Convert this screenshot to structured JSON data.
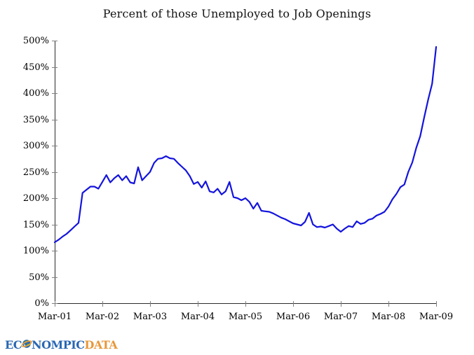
{
  "title": "Percent of those Unemployed to Job Openings",
  "logo": {
    "part1": "EC",
    "part2": "NOMPIC",
    "part3": "DATA",
    "globe_icon": "globe-icon"
  },
  "colors": {
    "line": "#1414dd",
    "axis": "#2b2b2b",
    "tick": "#808080",
    "logo_blue": "#2a67b2",
    "logo_orange": "#e8973a",
    "logo_globe_green": "#55a544",
    "logo_globe_blue": "#2a67b2",
    "logo_globe_ring": "#f0a030"
  },
  "chart_data": {
    "type": "line",
    "title": "Percent of those Unemployed to Job Openings",
    "xlabel": "",
    "ylabel": "",
    "grid": false,
    "legend_position": "none",
    "x_start": "Mar-2001",
    "x_frequency": "monthly",
    "x_tick_labels": [
      "Mar-01",
      "Mar-02",
      "Mar-03",
      "Mar-04",
      "Mar-05",
      "Mar-06",
      "Mar-07",
      "Mar-08",
      "Mar-09"
    ],
    "x_tick_month_positions": [
      0,
      12,
      24,
      36,
      48,
      60,
      72,
      84,
      96
    ],
    "y_tick_labels": [
      "0%",
      "50%",
      "100%",
      "150%",
      "200%",
      "250%",
      "300%",
      "350%",
      "400%",
      "450%",
      "500%"
    ],
    "y_tick_values": [
      0,
      50,
      100,
      150,
      200,
      250,
      300,
      350,
      400,
      450,
      500
    ],
    "ylim": [
      0,
      500
    ],
    "series": [
      {
        "name": "Percent of those Unemployed to Job Openings",
        "unit": "percent",
        "values": [
          116,
          121,
          127,
          132,
          139,
          146,
          153,
          210,
          216,
          222,
          222,
          218,
          231,
          244,
          230,
          238,
          244,
          234,
          242,
          230,
          228,
          259,
          234,
          242,
          250,
          267,
          275,
          276,
          280,
          276,
          275,
          267,
          260,
          253,
          242,
          227,
          231,
          220,
          232,
          213,
          211,
          218,
          207,
          213,
          231,
          202,
          200,
          196,
          200,
          193,
          180,
          191,
          176,
          175,
          174,
          171,
          167,
          163,
          160,
          156,
          152,
          150,
          148,
          155,
          172,
          150,
          145,
          146,
          144,
          147,
          150,
          142,
          136,
          142,
          147,
          145,
          156,
          151,
          153,
          159,
          161,
          167,
          170,
          174,
          184,
          198,
          208,
          221,
          226,
          250,
          268,
          296,
          318,
          354,
          388,
          418,
          488
        ]
      }
    ]
  }
}
